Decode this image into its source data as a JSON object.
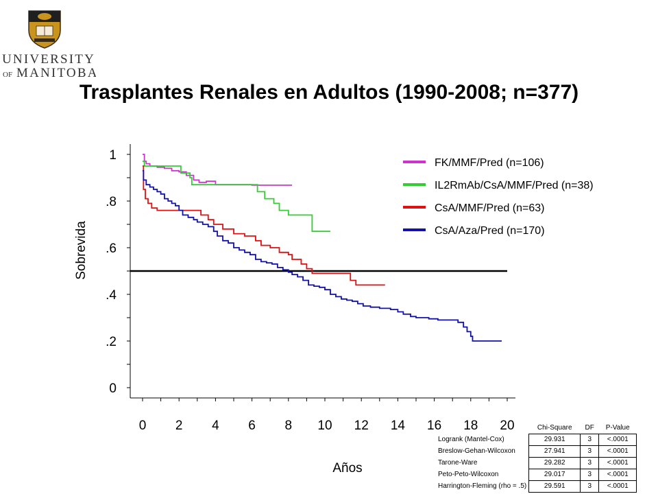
{
  "logo": {
    "line1": "UNIVERSITY",
    "line2a": "OF",
    "line2b": "MANITOBA",
    "shield_icon": "university-shield-icon"
  },
  "title": "Trasplantes Renales en Adultos (1990-2008; n=377)",
  "chart_data": {
    "type": "line",
    "subtype": "kaplan-meier",
    "xlabel": "Años",
    "ylabel": "Sobrevida",
    "xlim": [
      0,
      20
    ],
    "ylim": [
      0,
      1
    ],
    "x_ticks": [
      "0",
      "2",
      "4",
      "6",
      "8",
      "10",
      "12",
      "14",
      "16",
      "18",
      "20"
    ],
    "y_ticks": [
      "0",
      ".2",
      ".4",
      ".6",
      ".8",
      "1"
    ],
    "grid": false,
    "legend_position": "top-right",
    "reference_line": {
      "y": 0.5,
      "x": [
        -0.7,
        20
      ]
    },
    "series": [
      {
        "name": "FK/MMF/Pred  (n=106)",
        "color": "#cc33cc",
        "points": [
          [
            0,
            1
          ],
          [
            0.1,
            0.97
          ],
          [
            0.2,
            0.96
          ],
          [
            0.4,
            0.95
          ],
          [
            0.8,
            0.945
          ],
          [
            1.2,
            0.94
          ],
          [
            1.6,
            0.93
          ],
          [
            2.0,
            0.925
          ],
          [
            2.4,
            0.91
          ],
          [
            2.8,
            0.89
          ],
          [
            3.1,
            0.88
          ],
          [
            3.5,
            0.885
          ],
          [
            4.0,
            0.87
          ],
          [
            4.8,
            0.87
          ],
          [
            6.0,
            0.868
          ],
          [
            8.2,
            0.868
          ]
        ]
      },
      {
        "name": "IL2RmAb/CsA/MMF/Pred (n=38)",
        "color": "#33cc33",
        "points": [
          [
            0,
            0.97
          ],
          [
            0.1,
            0.95
          ],
          [
            1.9,
            0.95
          ],
          [
            2.1,
            0.92
          ],
          [
            2.6,
            0.9
          ],
          [
            2.7,
            0.87
          ],
          [
            6.2,
            0.87
          ],
          [
            6.3,
            0.84
          ],
          [
            6.7,
            0.81
          ],
          [
            7.2,
            0.79
          ],
          [
            7.5,
            0.76
          ],
          [
            8.0,
            0.74
          ],
          [
            9.2,
            0.74
          ],
          [
            9.3,
            0.67
          ],
          [
            10.3,
            0.67
          ]
        ]
      },
      {
        "name": "CsA/MMF/Pred (n=63)",
        "color": "#dd1111",
        "points": [
          [
            0,
            0.95
          ],
          [
            0.05,
            0.85
          ],
          [
            0.15,
            0.81
          ],
          [
            0.3,
            0.79
          ],
          [
            0.5,
            0.77
          ],
          [
            0.8,
            0.76
          ],
          [
            2.0,
            0.76
          ],
          [
            2.8,
            0.76
          ],
          [
            3.2,
            0.74
          ],
          [
            3.6,
            0.72
          ],
          [
            3.9,
            0.7
          ],
          [
            4.4,
            0.68
          ],
          [
            5.0,
            0.66
          ],
          [
            5.6,
            0.65
          ],
          [
            6.2,
            0.63
          ],
          [
            6.5,
            0.61
          ],
          [
            7.0,
            0.6
          ],
          [
            7.5,
            0.58
          ],
          [
            8.0,
            0.57
          ],
          [
            8.2,
            0.55
          ],
          [
            8.7,
            0.53
          ],
          [
            9.0,
            0.51
          ],
          [
            9.3,
            0.49
          ],
          [
            10.5,
            0.49
          ],
          [
            11.2,
            0.49
          ],
          [
            11.4,
            0.46
          ],
          [
            11.7,
            0.44
          ],
          [
            13.3,
            0.44
          ]
        ]
      },
      {
        "name": "CsA/Aza/Pred (n=170)",
        "color": "#1111aa",
        "points": [
          [
            0,
            0.93
          ],
          [
            0.05,
            0.89
          ],
          [
            0.2,
            0.87
          ],
          [
            0.4,
            0.86
          ],
          [
            0.6,
            0.85
          ],
          [
            0.8,
            0.84
          ],
          [
            1.0,
            0.83
          ],
          [
            1.2,
            0.81
          ],
          [
            1.4,
            0.8
          ],
          [
            1.6,
            0.79
          ],
          [
            1.8,
            0.78
          ],
          [
            2.0,
            0.76
          ],
          [
            2.2,
            0.74
          ],
          [
            2.5,
            0.73
          ],
          [
            2.8,
            0.72
          ],
          [
            3.0,
            0.71
          ],
          [
            3.3,
            0.7
          ],
          [
            3.6,
            0.69
          ],
          [
            3.9,
            0.67
          ],
          [
            4.1,
            0.65
          ],
          [
            4.4,
            0.63
          ],
          [
            4.7,
            0.62
          ],
          [
            5.0,
            0.6
          ],
          [
            5.3,
            0.59
          ],
          [
            5.6,
            0.58
          ],
          [
            5.9,
            0.57
          ],
          [
            6.2,
            0.55
          ],
          [
            6.5,
            0.54
          ],
          [
            6.8,
            0.535
          ],
          [
            7.1,
            0.53
          ],
          [
            7.4,
            0.515
          ],
          [
            7.7,
            0.505
          ],
          [
            8.0,
            0.495
          ],
          [
            8.2,
            0.485
          ],
          [
            8.5,
            0.475
          ],
          [
            8.8,
            0.46
          ],
          [
            9.1,
            0.44
          ],
          [
            9.4,
            0.435
          ],
          [
            9.7,
            0.43
          ],
          [
            10.0,
            0.42
          ],
          [
            10.3,
            0.4
          ],
          [
            10.6,
            0.39
          ],
          [
            10.9,
            0.38
          ],
          [
            11.2,
            0.375
          ],
          [
            11.5,
            0.37
          ],
          [
            11.8,
            0.36
          ],
          [
            12.1,
            0.35
          ],
          [
            12.5,
            0.345
          ],
          [
            13.0,
            0.34
          ],
          [
            13.6,
            0.335
          ],
          [
            14.0,
            0.325
          ],
          [
            14.3,
            0.315
          ],
          [
            14.7,
            0.305
          ],
          [
            15.0,
            0.3
          ],
          [
            15.7,
            0.295
          ],
          [
            16.2,
            0.29
          ],
          [
            16.9,
            0.29
          ],
          [
            17.3,
            0.28
          ],
          [
            17.6,
            0.26
          ],
          [
            17.8,
            0.24
          ],
          [
            18.0,
            0.22
          ],
          [
            18.1,
            0.2
          ],
          [
            19.7,
            0.2
          ]
        ]
      }
    ]
  },
  "stats_table": {
    "headers": [
      "Chi-Square",
      "DF",
      "P-Value"
    ],
    "rows": [
      {
        "test": "Logrank (Mantel-Cox)",
        "chi": "29.931",
        "df": "3",
        "p": "<.0001"
      },
      {
        "test": "Breslow-Gehan-Wilcoxon",
        "chi": "27.941",
        "df": "3",
        "p": "<.0001"
      },
      {
        "test": "Tarone-Ware",
        "chi": "29.282",
        "df": "3",
        "p": "<.0001"
      },
      {
        "test": "Peto-Peto-Wilcoxon",
        "chi": "29.017",
        "df": "3",
        "p": "<.0001"
      },
      {
        "test": "Harrington-Fleming (rho = .5)",
        "chi": "29.591",
        "df": "3",
        "p": "<.0001"
      }
    ]
  }
}
